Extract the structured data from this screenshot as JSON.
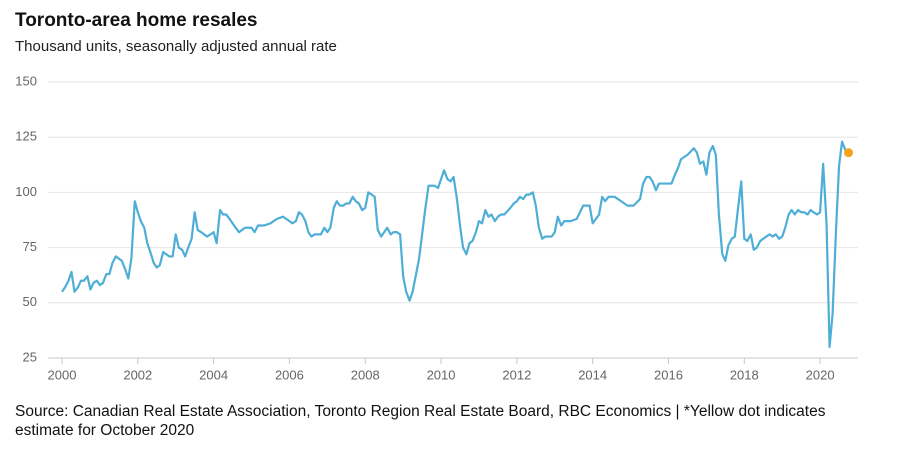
{
  "chart_data": {
    "type": "line",
    "title": "Toronto-area home resales",
    "subtitle": "Thousand units, seasonally adjusted annual rate",
    "source": "Source: Canadian Real Estate Association, Toronto Region Real Estate Board, RBC Economics | *Yellow dot indicates estimate for October 2020",
    "xlim": [
      2000,
      2021
    ],
    "xticks": [
      2000,
      2002,
      2004,
      2006,
      2008,
      2010,
      2012,
      2014,
      2016,
      2018,
      2020
    ],
    "ylim": [
      25,
      150
    ],
    "yticks": [
      25,
      50,
      75,
      100,
      125,
      150
    ],
    "grid": true,
    "series": [
      {
        "color": "#4eaed6",
        "marker": "none",
        "x": [
          2000.0,
          2000.08,
          2000.17,
          2000.25,
          2000.33,
          2000.42,
          2000.5,
          2000.58,
          2000.67,
          2000.75,
          2000.83,
          2000.92,
          2001.0,
          2001.08,
          2001.17,
          2001.25,
          2001.33,
          2001.42,
          2001.5,
          2001.58,
          2001.67,
          2001.75,
          2001.83,
          2001.92,
          2002.0,
          2002.08,
          2002.17,
          2002.25,
          2002.33,
          2002.42,
          2002.5,
          2002.58,
          2002.67,
          2002.75,
          2002.83,
          2002.92,
          2003.0,
          2003.08,
          2003.17,
          2003.25,
          2003.33,
          2003.42,
          2003.5,
          2003.58,
          2003.67,
          2003.75,
          2003.83,
          2003.92,
          2004.0,
          2004.08,
          2004.17,
          2004.25,
          2004.33,
          2004.42,
          2004.5,
          2004.58,
          2004.67,
          2004.75,
          2004.83,
          2004.92,
          2005.0,
          2005.08,
          2005.17,
          2005.25,
          2005.33,
          2005.5,
          2005.67,
          2005.83,
          2006.0,
          2006.08,
          2006.17,
          2006.25,
          2006.33,
          2006.42,
          2006.5,
          2006.58,
          2006.67,
          2006.83,
          2006.92,
          2007.0,
          2007.08,
          2007.17,
          2007.25,
          2007.33,
          2007.42,
          2007.5,
          2007.58,
          2007.67,
          2007.75,
          2007.83,
          2007.92,
          2008.0,
          2008.08,
          2008.17,
          2008.25,
          2008.33,
          2008.42,
          2008.5,
          2008.58,
          2008.67,
          2008.75,
          2008.83,
          2008.92,
          2009.0,
          2009.08,
          2009.17,
          2009.25,
          2009.33,
          2009.42,
          2009.5,
          2009.58,
          2009.67,
          2009.75,
          2009.83,
          2009.92,
          2010.0,
          2010.08,
          2010.17,
          2010.25,
          2010.33,
          2010.42,
          2010.5,
          2010.58,
          2010.67,
          2010.75,
          2010.83,
          2010.92,
          2011.0,
          2011.08,
          2011.17,
          2011.25,
          2011.33,
          2011.42,
          2011.5,
          2011.58,
          2011.67,
          2011.83,
          2011.92,
          2012.0,
          2012.08,
          2012.17,
          2012.25,
          2012.33,
          2012.42,
          2012.5,
          2012.58,
          2012.67,
          2012.75,
          2012.83,
          2012.92,
          2013.0,
          2013.08,
          2013.17,
          2013.25,
          2013.42,
          2013.58,
          2013.75,
          2013.92,
          2014.0,
          2014.17,
          2014.25,
          2014.33,
          2014.42,
          2014.58,
          2014.75,
          2014.92,
          2015.08,
          2015.25,
          2015.33,
          2015.42,
          2015.5,
          2015.58,
          2015.67,
          2015.75,
          2015.92,
          2016.08,
          2016.17,
          2016.25,
          2016.33,
          2016.5,
          2016.67,
          2016.75,
          2016.83,
          2016.92,
          2017.0,
          2017.08,
          2017.17,
          2017.25,
          2017.33,
          2017.42,
          2017.5,
          2017.58,
          2017.67,
          2017.75,
          2017.83,
          2017.92,
          2018.0,
          2018.08,
          2018.17,
          2018.25,
          2018.33,
          2018.42,
          2018.5,
          2018.58,
          2018.67,
          2018.75,
          2018.83,
          2018.92,
          2019.0,
          2019.08,
          2019.17,
          2019.25,
          2019.33,
          2019.42,
          2019.5,
          2019.58,
          2019.67,
          2019.75,
          2019.83,
          2019.92,
          2020.0,
          2020.08,
          2020.17,
          2020.25,
          2020.33,
          2020.42,
          2020.5,
          2020.58,
          2020.67
        ],
        "values": [
          55,
          57,
          60,
          64,
          55,
          57,
          60,
          60,
          62,
          56,
          59,
          60,
          58,
          59,
          63,
          63,
          68,
          71,
          70,
          69,
          65,
          61,
          70,
          96,
          91,
          87,
          84,
          77,
          73,
          68,
          66,
          67,
          73,
          72,
          71,
          71,
          81,
          75,
          74,
          71,
          75,
          79,
          91,
          83,
          82,
          81,
          80,
          81,
          82,
          77,
          92,
          90,
          90,
          88,
          86,
          84,
          82,
          83,
          84,
          84,
          84,
          82,
          85,
          85,
          85,
          86,
          88,
          89,
          87,
          86,
          87,
          91,
          90,
          87,
          82,
          80,
          81,
          81,
          84,
          82,
          84,
          93,
          96,
          94,
          94,
          95,
          95,
          98,
          96,
          95,
          92,
          93,
          100,
          99,
          98,
          83,
          80,
          82,
          84,
          81,
          82,
          82,
          81,
          62,
          55,
          51,
          55,
          62,
          70,
          81,
          92,
          103,
          103,
          103,
          102,
          106,
          110,
          106,
          105,
          107,
          97,
          85,
          75,
          72,
          77,
          78,
          82,
          87,
          86,
          92,
          89,
          90,
          87,
          89,
          90,
          90,
          93,
          95,
          96,
          98,
          97,
          99,
          99,
          100,
          94,
          84,
          79,
          80,
          80,
          80,
          82,
          89,
          85,
          87,
          87,
          88,
          94,
          94,
          86,
          90,
          98,
          96,
          98,
          98,
          96,
          94,
          94,
          97,
          104,
          107,
          107,
          105,
          101,
          104,
          104,
          104,
          108,
          111,
          115,
          117,
          120,
          118,
          113,
          114,
          108,
          118,
          121,
          117,
          90,
          72,
          69,
          76,
          79,
          80,
          92,
          105,
          79,
          78,
          81,
          74,
          75,
          78,
          79,
          80,
          81,
          80,
          81,
          79,
          80,
          84,
          90,
          92,
          90,
          92,
          91,
          91,
          90,
          92,
          91,
          90,
          91,
          113,
          86,
          30,
          45,
          83,
          112,
          123,
          119
        ]
      },
      {
        "color": "#f5a31a",
        "marker": "dot",
        "x": [
          2020.75
        ],
        "values": [
          118
        ]
      }
    ]
  }
}
